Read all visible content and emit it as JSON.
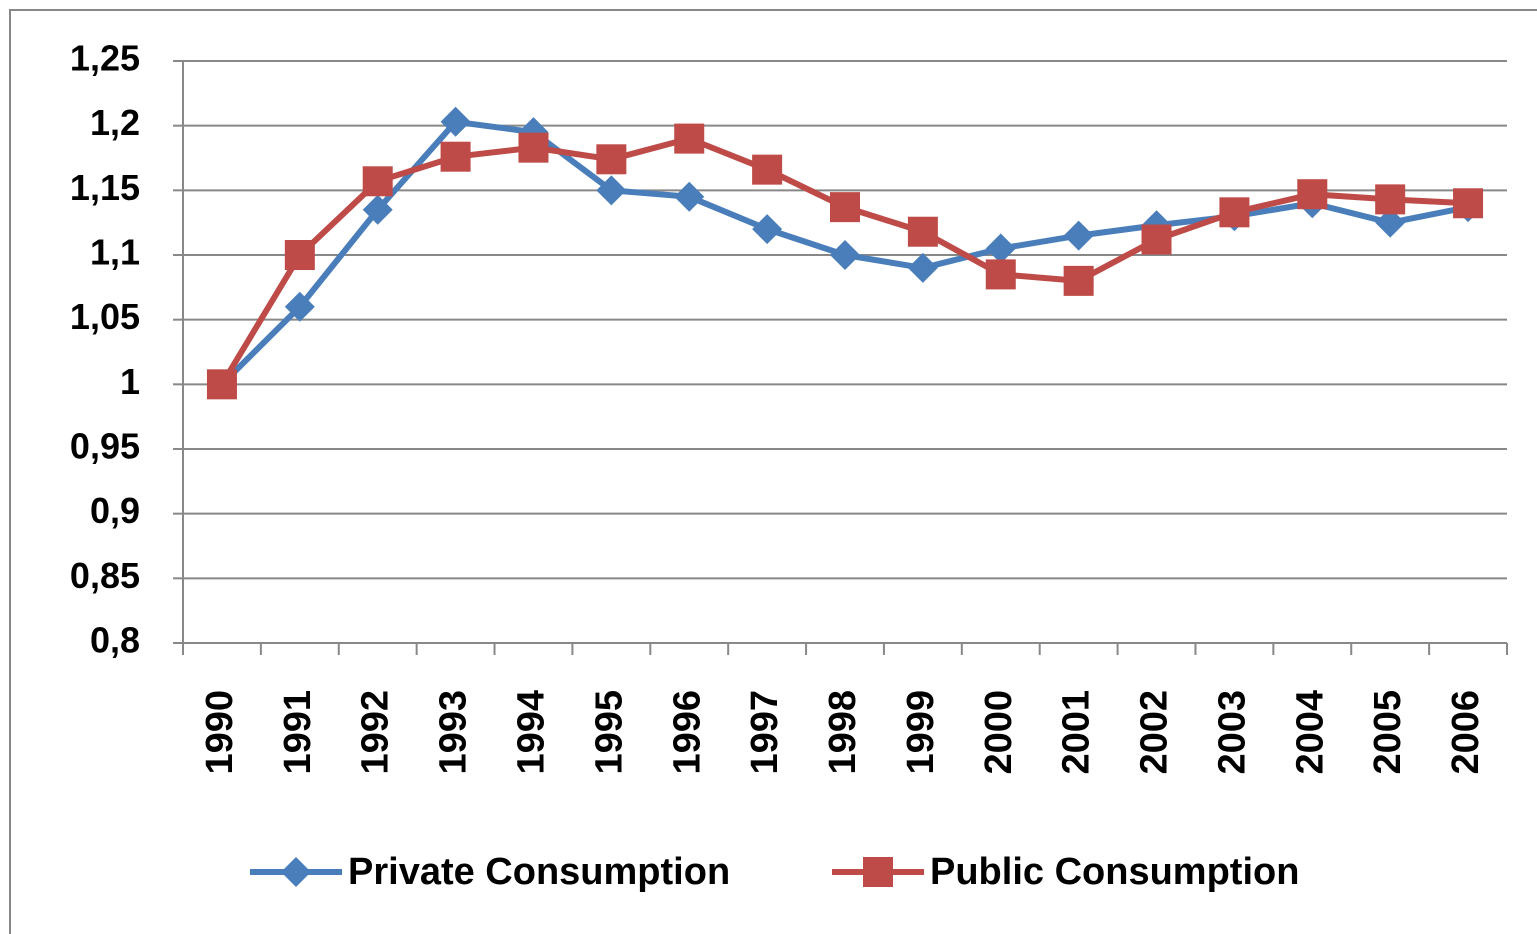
{
  "chart_data": {
    "type": "line",
    "categories": [
      "1990",
      "1991",
      "1992",
      "1993",
      "1994",
      "1995",
      "1996",
      "1997",
      "1998",
      "1999",
      "2000",
      "2001",
      "2002",
      "2003",
      "2004",
      "2005",
      "2006"
    ],
    "series": [
      {
        "name": "Private Consumption",
        "color": "#4a7ebb",
        "marker": "diamond",
        "values": [
          1.0,
          1.06,
          1.135,
          1.203,
          1.195,
          1.15,
          1.145,
          1.12,
          1.1,
          1.09,
          1.105,
          1.115,
          1.123,
          1.13,
          1.14,
          1.125,
          1.137
        ]
      },
      {
        "name": "Public Consumption",
        "color": "#be4b48",
        "marker": "square",
        "values": [
          1.0,
          1.1,
          1.157,
          1.176,
          1.183,
          1.174,
          1.19,
          1.166,
          1.137,
          1.118,
          1.085,
          1.08,
          1.112,
          1.133,
          1.147,
          1.143,
          1.14
        ]
      }
    ],
    "ylim": [
      0.8,
      1.25
    ],
    "yticks": [
      {
        "value": 0.8,
        "label": "0,8"
      },
      {
        "value": 0.85,
        "label": "0,85"
      },
      {
        "value": 0.9,
        "label": "0,9"
      },
      {
        "value": 0.95,
        "label": "0,95"
      },
      1,
      {
        "value": 1.05,
        "label": "1,05"
      },
      {
        "value": 1.1,
        "label": "1,1"
      },
      {
        "value": 1.15,
        "label": "1,15"
      },
      {
        "value": 1.2,
        "label": "1,2"
      },
      {
        "value": 1.25,
        "label": "1,25"
      }
    ],
    "grid": true,
    "legend": "bottom"
  }
}
